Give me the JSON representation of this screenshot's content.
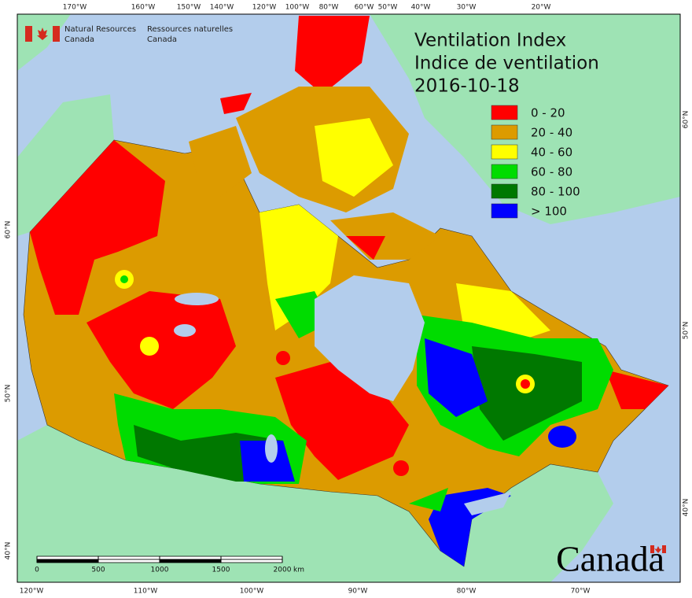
{
  "header": {
    "agency_en": [
      "Natural Resources",
      "Canada"
    ],
    "agency_fr": [
      "Ressources naturelles",
      "Canada"
    ]
  },
  "title": [
    "Ventilation Index",
    "Indice de ventilation"
  ],
  "date": "2016-10-18",
  "legend": [
    {
      "label": "0 - 20",
      "color": "#ff0000"
    },
    {
      "label": "20 - 40",
      "color": "#dc9b00"
    },
    {
      "label": "40 - 60",
      "color": "#ffff00"
    },
    {
      "label": "60 - 80",
      "color": "#00dc00"
    },
    {
      "label": "80 - 100",
      "color": "#007800"
    },
    {
      "label": "> 100",
      "color": "#0000ff"
    }
  ],
  "top_labels": [
    "170°W",
    "160°W",
    "150°W",
    "140°W",
    "120°W",
    "100°W",
    "80°W",
    "60°W",
    "50°W",
    "40°W",
    "30°W",
    "20°W"
  ],
  "bottom_labels": [
    "120°W",
    "110°W",
    "100°W",
    "90°W",
    "80°W",
    "70°W"
  ],
  "left_labels": [
    "60°N",
    "50°N",
    "40°N"
  ],
  "right_labels": [
    "60°N",
    "50°N",
    "40°N"
  ],
  "scale_bar": {
    "ticks": [
      0,
      500,
      1000,
      1500,
      2000
    ],
    "unit": "km"
  },
  "wordmark": "Canada"
}
